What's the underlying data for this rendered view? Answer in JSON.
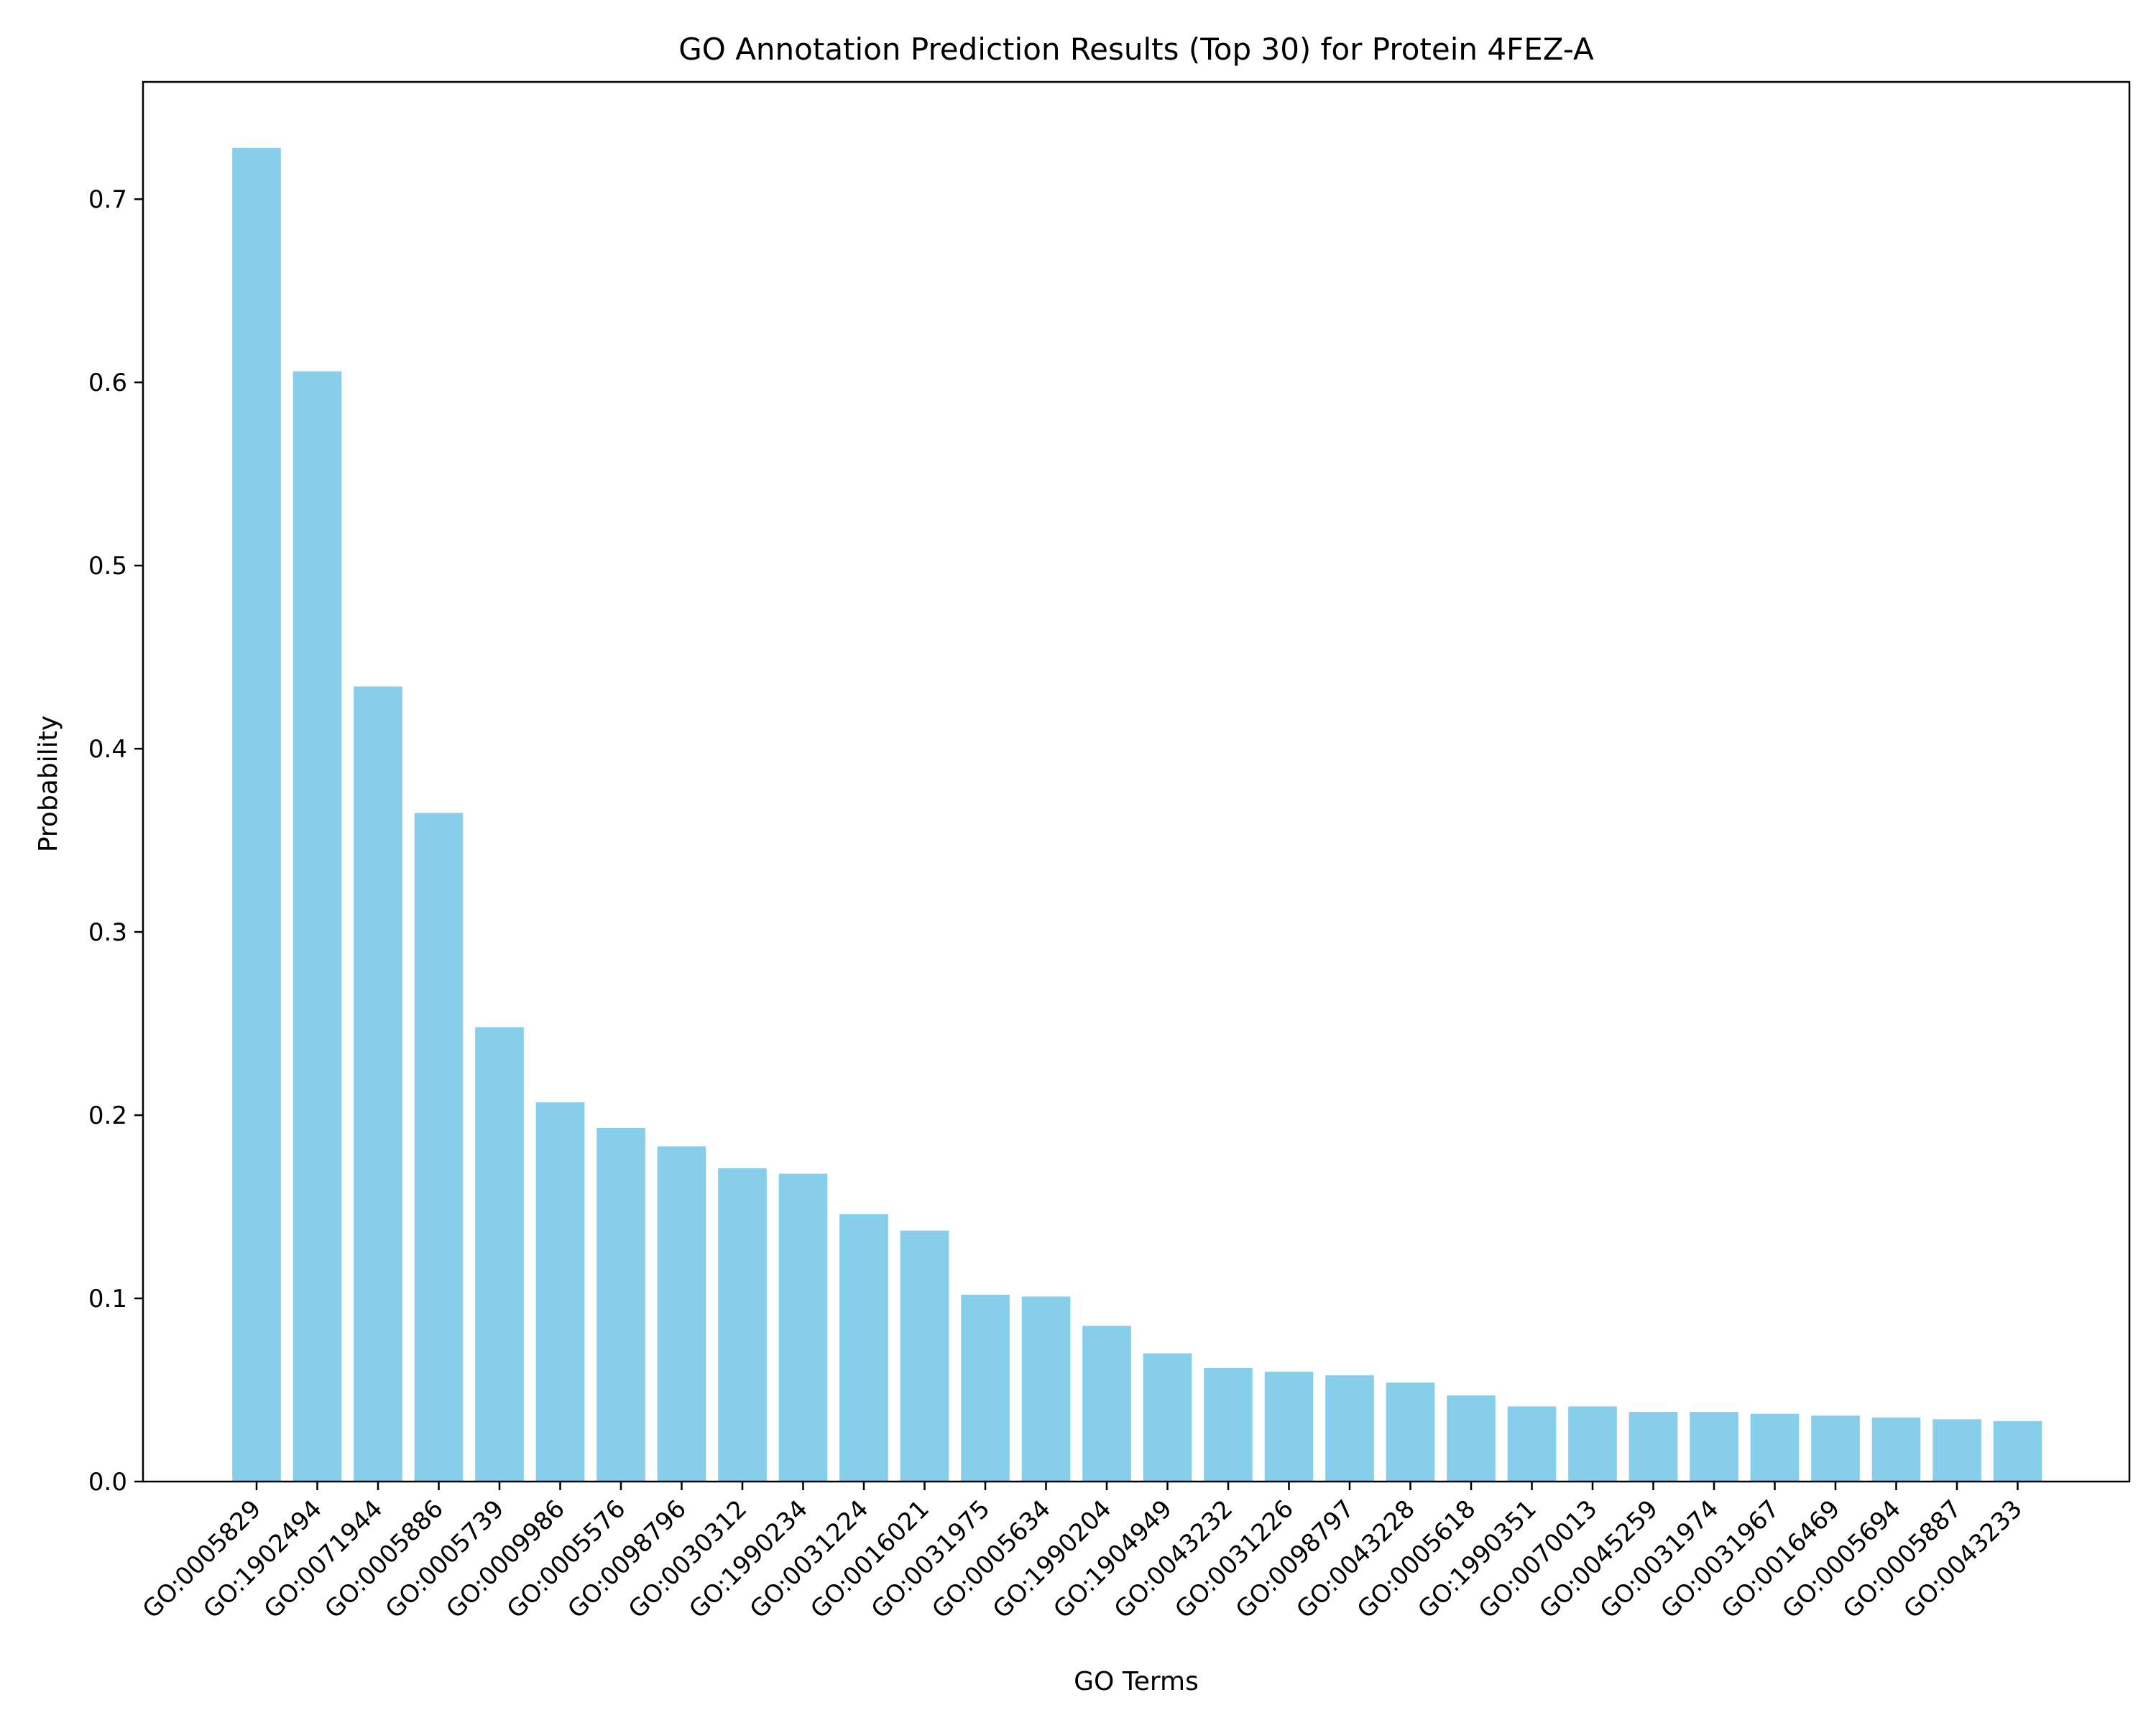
{
  "chart_data": {
    "type": "bar",
    "title": "GO Annotation Prediction Results (Top 30) for Protein 4FEZ-A",
    "xlabel": "GO Terms",
    "ylabel": "Probability",
    "categories": [
      "GO:0005829",
      "GO:1902494",
      "GO:0071944",
      "GO:0005886",
      "GO:0005739",
      "GO:0009986",
      "GO:0005576",
      "GO:0098796",
      "GO:0030312",
      "GO:1990234",
      "GO:0031224",
      "GO:0016021",
      "GO:0031975",
      "GO:0005634",
      "GO:1990204",
      "GO:1904949",
      "GO:0043232",
      "GO:0031226",
      "GO:0098797",
      "GO:0043228",
      "GO:0005618",
      "GO:1990351",
      "GO:0070013",
      "GO:0045259",
      "GO:0031974",
      "GO:0031967",
      "GO:0016469",
      "GO:0005694",
      "GO:0005887",
      "GO:0043233"
    ],
    "values": [
      0.728,
      0.606,
      0.434,
      0.365,
      0.248,
      0.207,
      0.193,
      0.183,
      0.171,
      0.168,
      0.146,
      0.137,
      0.102,
      0.101,
      0.085,
      0.07,
      0.062,
      0.06,
      0.058,
      0.054,
      0.047,
      0.041,
      0.041,
      0.038,
      0.038,
      0.037,
      0.036,
      0.035,
      0.034,
      0.033
    ],
    "ylim": [
      0,
      0.764
    ],
    "yticks": [
      0.0,
      0.1,
      0.2,
      0.3,
      0.4,
      0.5,
      0.6,
      0.7
    ],
    "ytick_labels": [
      "0.0",
      "0.1",
      "0.2",
      "0.3",
      "0.4",
      "0.5",
      "0.6",
      "0.7"
    ],
    "bar_color": "#87CEEB",
    "grid": false,
    "legend": "none"
  }
}
